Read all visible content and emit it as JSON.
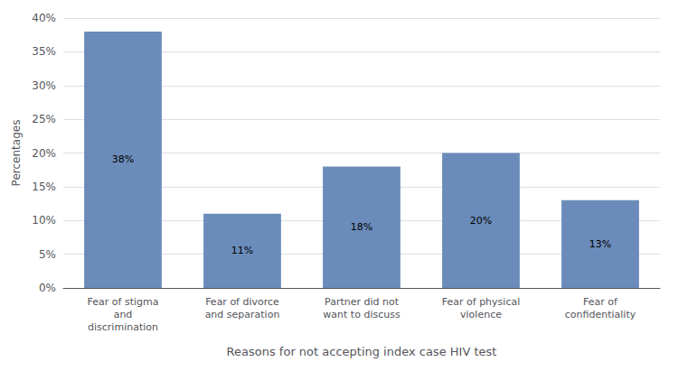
{
  "chart_data": {
    "type": "bar",
    "categories": [
      "Fear of stigma\nand\ndiscrimination",
      "Fear of divorce\nand separation",
      "Partner did not\nwant to discuss",
      "Fear of physical\nviolence",
      "Fear of\nconfidentiality"
    ],
    "values": [
      38,
      11,
      18,
      20,
      13
    ],
    "value_labels": [
      "38%",
      "11%",
      "18%",
      "20%",
      "13%"
    ],
    "data_labels": true,
    "color": "#6b8cba",
    "xlabel": "Reasons for not accepting index case HIV test",
    "ylabel": "Percentages",
    "ylim": [
      0,
      40
    ],
    "yticks": [
      {
        "value": 0,
        "label": "0%"
      },
      {
        "value": 5,
        "label": "5%"
      },
      {
        "value": 10,
        "label": "10%"
      },
      {
        "value": 15,
        "label": "15%"
      },
      {
        "value": 20,
        "label": "20%"
      },
      {
        "value": 25,
        "label": "25%"
      },
      {
        "value": 30,
        "label": "30%"
      },
      {
        "value": 35,
        "label": "35%"
      },
      {
        "value": 40,
        "label": "40%"
      }
    ],
    "grid": true
  }
}
